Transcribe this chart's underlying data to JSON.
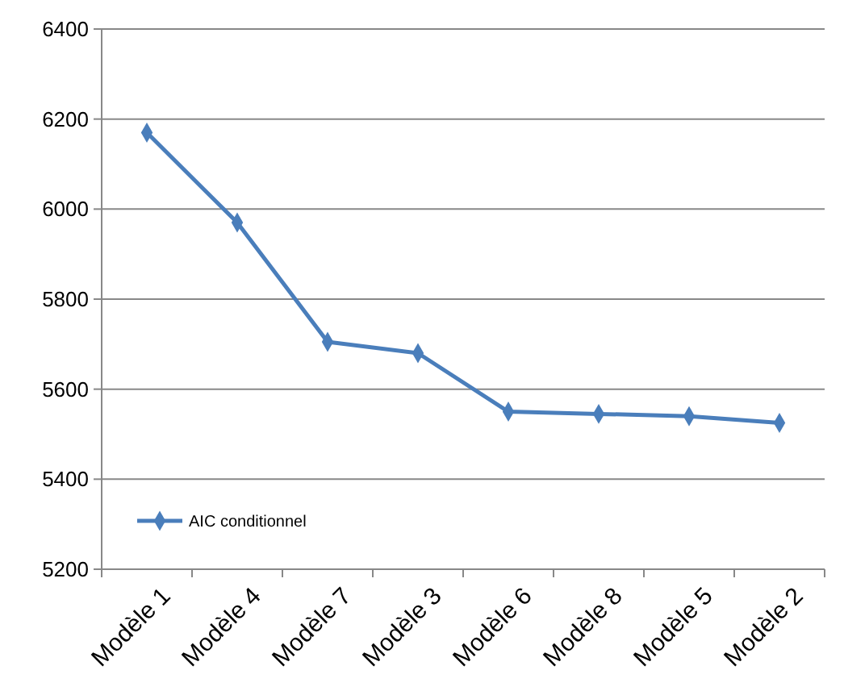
{
  "chart_data": {
    "type": "line",
    "categories": [
      "Modèle 1",
      "Modèle 4",
      "Modèle 7",
      "Modèle 3",
      "Modèle 6",
      "Modèle 8",
      "Modèle 5",
      "Modèle 2"
    ],
    "series": [
      {
        "name": "AIC conditionnel",
        "color": "#4a7ebb",
        "values": [
          6170,
          5970,
          5705,
          5680,
          5550,
          5545,
          5540,
          5525
        ]
      }
    ],
    "ylim": [
      5200,
      6400
    ],
    "yticks": [
      5200,
      5400,
      5600,
      5800,
      6000,
      6200,
      6400
    ],
    "grid": "y",
    "legend": "bottom left",
    "marker": "diamond",
    "line_style": "solid"
  }
}
